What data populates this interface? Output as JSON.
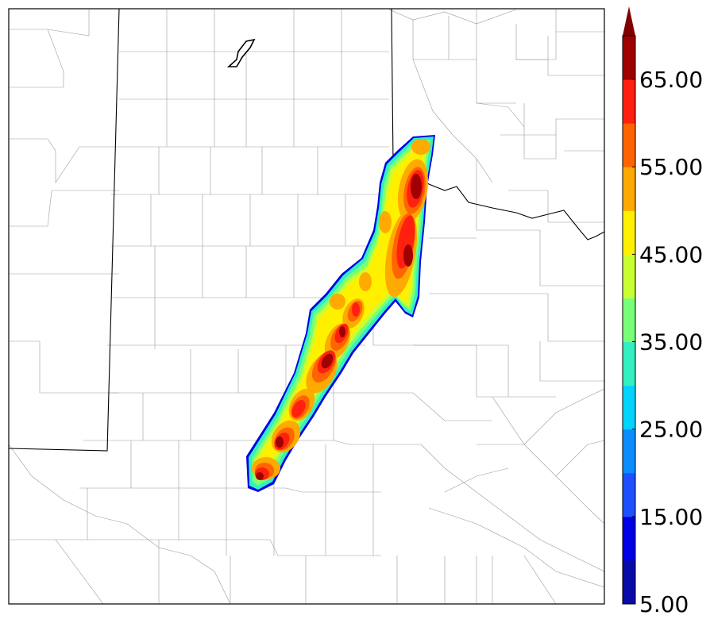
{
  "colorbar": {
    "tick_labels": [
      "5.00",
      "15.00",
      "25.00",
      "35.00",
      "45.00",
      "55.00",
      "65.00"
    ],
    "levels": [
      5,
      10,
      15,
      20,
      25,
      30,
      35,
      40,
      45,
      50,
      55,
      60,
      65,
      70
    ],
    "colors": [
      "#0a0aa8",
      "#0000e6",
      "#1e50ff",
      "#0a8cff",
      "#00d4ff",
      "#32f0c0",
      "#78ff78",
      "#c8ff32",
      "#fff000",
      "#ffaa00",
      "#ff6400",
      "#ff2010",
      "#a00000"
    ],
    "extend": "max",
    "extend_color": "#800000"
  },
  "map": {
    "background": "#ffffff",
    "county_line_color": "#9a9a9a",
    "state_line_color": "#000000",
    "field": "storm swath (filled contours, northeast-oriented)"
  }
}
